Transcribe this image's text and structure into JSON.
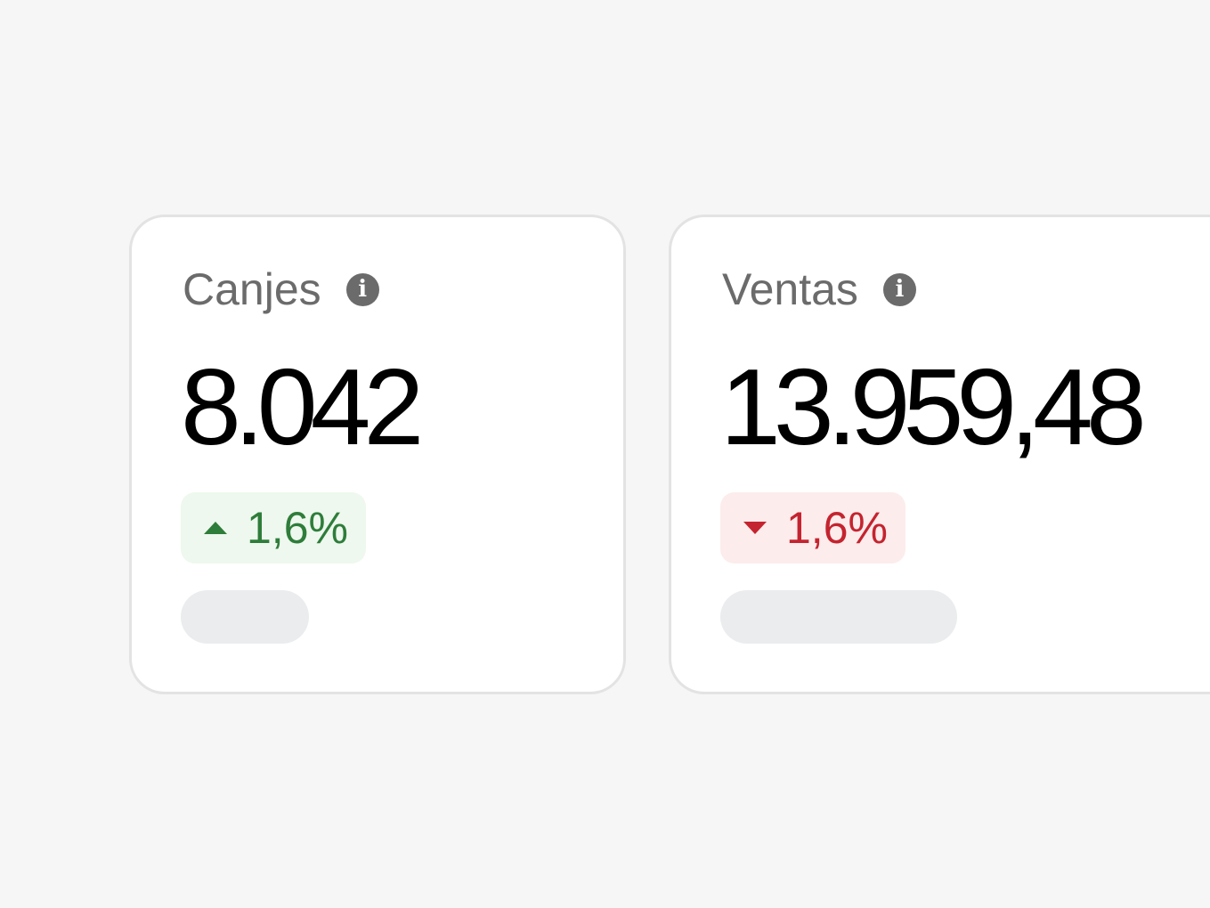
{
  "cards": [
    {
      "title": "Canjes",
      "value": "8.042",
      "change": "1,6%",
      "trend": "up",
      "trend_color": "#2e7d3a",
      "info_icon": "info-icon"
    },
    {
      "title": "Ventas",
      "value": "13.959,48",
      "change": "1,6%",
      "trend": "down",
      "trend_color": "#c4242f",
      "info_icon": "info-icon"
    }
  ]
}
